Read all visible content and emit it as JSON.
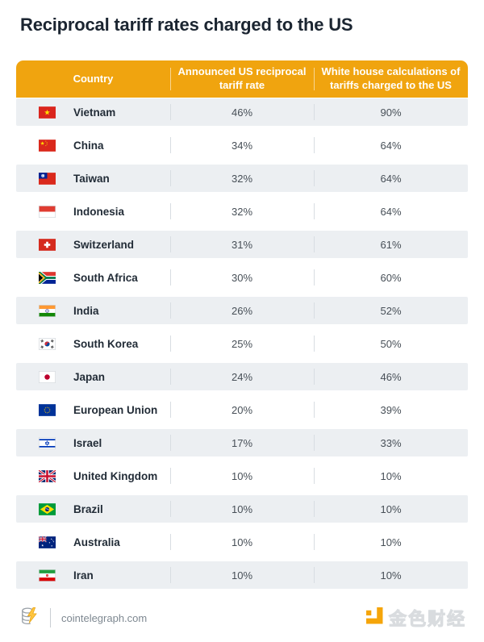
{
  "title": "Reciprocal tariff rates charged to the US",
  "table": {
    "columns": [
      "Country",
      "Announced US reciprocal tariff rate",
      "White house calculations of tariffs charged to the US"
    ],
    "rows": [
      {
        "country": "Vietnam",
        "flag": "vietnam",
        "announced": "46%",
        "white_house": "90%"
      },
      {
        "country": "China",
        "flag": "china",
        "announced": "34%",
        "white_house": "64%"
      },
      {
        "country": "Taiwan",
        "flag": "taiwan",
        "announced": "32%",
        "white_house": "64%"
      },
      {
        "country": "Indonesia",
        "flag": "indonesia",
        "announced": "32%",
        "white_house": "64%"
      },
      {
        "country": "Switzerland",
        "flag": "switzerland",
        "announced": "31%",
        "white_house": "61%"
      },
      {
        "country": "South Africa",
        "flag": "south-africa",
        "announced": "30%",
        "white_house": "60%"
      },
      {
        "country": "India",
        "flag": "india",
        "announced": "26%",
        "white_house": "52%"
      },
      {
        "country": "South Korea",
        "flag": "south-korea",
        "announced": "25%",
        "white_house": "50%"
      },
      {
        "country": "Japan",
        "flag": "japan",
        "announced": "24%",
        "white_house": "46%"
      },
      {
        "country": "European Union",
        "flag": "european-union",
        "announced": "20%",
        "white_house": "39%"
      },
      {
        "country": "Israel",
        "flag": "israel",
        "announced": "17%",
        "white_house": "33%"
      },
      {
        "country": "United Kingdom",
        "flag": "united-kingdom",
        "announced": "10%",
        "white_house": "10%"
      },
      {
        "country": "Brazil",
        "flag": "brazil",
        "announced": "10%",
        "white_house": "10%"
      },
      {
        "country": "Australia",
        "flag": "australia",
        "announced": "10%",
        "white_house": "10%"
      },
      {
        "country": "Iran",
        "flag": "iran",
        "announced": "10%",
        "white_house": "10%"
      }
    ]
  },
  "footer": {
    "source": "cointelegraph.com",
    "watermark": "金色财经"
  },
  "colors": {
    "header_bg": "#F0A40F",
    "row_alt_bg": "#ECEFF2",
    "accent": "#F5A50A"
  }
}
